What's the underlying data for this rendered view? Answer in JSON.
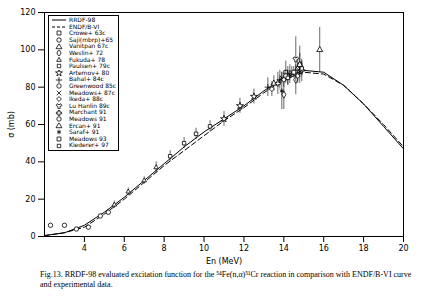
{
  "chart_data": {
    "type": "line",
    "caption": "Fig.13.  RRDF-98 evaluated excitation function for the ⁵⁴Fe(n,α)⁵¹Cr reaction in comparison with ENDF/B-VI curve and experimental data.",
    "xlabel": "En (MeV)",
    "ylabel": "σ (mb)",
    "xlim": [
      2,
      20
    ],
    "xticks": [
      4,
      6,
      8,
      10,
      12,
      14,
      16,
      18,
      20
    ],
    "ylim": [
      0,
      120
    ],
    "yticks": [
      0,
      20,
      40,
      60,
      80,
      100,
      120
    ],
    "grid": false,
    "legend": "top-left",
    "series": [
      {
        "name": "RRDF-98",
        "type": "line",
        "line_style": "solid",
        "color": "#000000",
        "x": [
          2,
          3,
          4,
          5,
          6,
          7,
          8,
          9,
          10,
          11,
          12,
          13,
          14,
          15,
          16,
          17,
          18,
          19,
          20
        ],
        "values": [
          0.5,
          2,
          6,
          13,
          21,
          30,
          39,
          48,
          56,
          63,
          70,
          78,
          85,
          89,
          88,
          81,
          71,
          59,
          47
        ]
      },
      {
        "name": "ENDF/B-VI",
        "type": "line",
        "line_style": "dashed",
        "color": "#000000",
        "x": [
          2,
          3,
          4,
          5,
          6,
          7,
          8,
          9,
          10,
          11,
          12,
          13,
          14,
          15,
          16,
          17,
          18,
          19,
          20
        ],
        "values": [
          0.5,
          2,
          5,
          12,
          20,
          29,
          38,
          46,
          54,
          62,
          69,
          77,
          84,
          88,
          87,
          81,
          71,
          60,
          48
        ]
      },
      {
        "name": "Crowe+ 63c",
        "type": "scatter",
        "marker": "square",
        "color": "#000000",
        "x": [
          14.1,
          14.8
        ],
        "values": [
          88,
          92
        ],
        "errors": [
          6,
          6
        ]
      },
      {
        "name": "Saji(mbrp)+65",
        "type": "scatter",
        "marker": "circle",
        "color": "#000000",
        "x": [
          2.3,
          3.0,
          3.6,
          4.2
        ],
        "values": [
          6,
          6,
          4,
          5
        ],
        "errors": [
          1,
          1,
          1,
          1
        ]
      },
      {
        "name": "Vanitpan 67c",
        "type": "scatter",
        "marker": "triangle",
        "color": "#000000",
        "x": [
          13.5,
          14.2,
          14.7
        ],
        "values": [
          82,
          86,
          90
        ],
        "errors": [
          4,
          5,
          5
        ]
      },
      {
        "name": "Weslin+ 72",
        "type": "scatter",
        "marker": "diamond",
        "color": "#000000",
        "x": [
          14.0,
          14.6
        ],
        "values": [
          76,
          84
        ],
        "errors": [
          8,
          8
        ]
      },
      {
        "name": "Fukuda+ 78",
        "type": "scatter",
        "marker": "triangle2",
        "color": "#000000",
        "x": [
          5.5,
          6.2,
          7.0,
          7.6
        ],
        "values": [
          17,
          24,
          30,
          37
        ],
        "errors": [
          2,
          2,
          2,
          3
        ]
      },
      {
        "name": "Paulsen+ 79c",
        "type": "scatter",
        "marker": "square2",
        "color": "#000000",
        "x": [
          8.3,
          9.0,
          9.6,
          10.3
        ],
        "values": [
          43,
          50,
          55,
          59
        ],
        "errors": [
          3,
          3,
          3,
          3
        ]
      },
      {
        "name": "Artemov+ 80",
        "type": "scatter",
        "marker": "star",
        "color": "#000000",
        "x": [
          11.0,
          11.8,
          12.5
        ],
        "values": [
          63,
          70,
          75
        ],
        "errors": [
          4,
          4,
          4
        ]
      },
      {
        "name": "Bahal+ 84c",
        "type": "scatter",
        "marker": "plus",
        "color": "#000000",
        "x": [
          13.2,
          13.8,
          14.3
        ],
        "values": [
          80,
          84,
          87
        ],
        "errors": [
          5,
          5,
          5
        ]
      },
      {
        "name": "Greenwood 85c",
        "type": "scatter",
        "marker": "circle",
        "color": "#000000",
        "x": [
          4.8,
          5.2
        ],
        "values": [
          11,
          13
        ],
        "errors": [
          1,
          1
        ]
      },
      {
        "name": "Meadows+ 87c",
        "type": "scatter",
        "marker": "times",
        "color": "#000000",
        "x": [
          13.9,
          14.4,
          14.8
        ],
        "values": [
          85,
          88,
          90
        ],
        "errors": [
          3,
          3,
          3
        ]
      },
      {
        "name": "Ikeda+ 88c",
        "type": "scatter",
        "marker": "diamond2",
        "color": "#000000",
        "x": [
          13.4,
          14.0,
          14.7
        ],
        "values": [
          79,
          84,
          86
        ],
        "errors": [
          4,
          4,
          4
        ]
      },
      {
        "name": "Lu Hanlin 89c",
        "type": "scatter",
        "marker": "wye",
        "color": "#000000",
        "x": [
          14.6
        ],
        "values": [
          95
        ],
        "errors": [
          12
        ]
      },
      {
        "name": "Marchant 91",
        "type": "scatter",
        "marker": "cross",
        "color": "#000000",
        "x": [
          13.7,
          14.9
        ],
        "values": [
          82,
          89
        ],
        "errors": [
          6,
          6
        ]
      },
      {
        "name": "Meadows 91",
        "type": "scatter",
        "marker": "circle",
        "color": "#000000",
        "x": [
          14.1
        ],
        "values": [
          86
        ],
        "errors": [
          3
        ]
      },
      {
        "name": "Ercan+ 91",
        "type": "scatter",
        "marker": "triangle",
        "color": "#000000",
        "x": [
          14.8,
          15.8
        ],
        "values": [
          92,
          100
        ],
        "errors": [
          10,
          12
        ]
      },
      {
        "name": "Saraf+ 91",
        "type": "scatter",
        "marker": "asterisk",
        "color": "#000000",
        "x": [
          13.9
        ],
        "values": [
          78
        ],
        "errors": [
          10
        ]
      },
      {
        "name": "Meadows 93",
        "type": "scatter",
        "marker": "square",
        "color": "#000000",
        "x": [
          14.5
        ],
        "values": [
          88
        ],
        "errors": [
          3
        ]
      },
      {
        "name": "Kiederer+ 97",
        "type": "scatter",
        "marker": "square2",
        "color": "#000000",
        "x": [
          14.2,
          14.9
        ],
        "values": [
          85,
          90
        ],
        "errors": [
          4,
          4
        ]
      }
    ]
  }
}
